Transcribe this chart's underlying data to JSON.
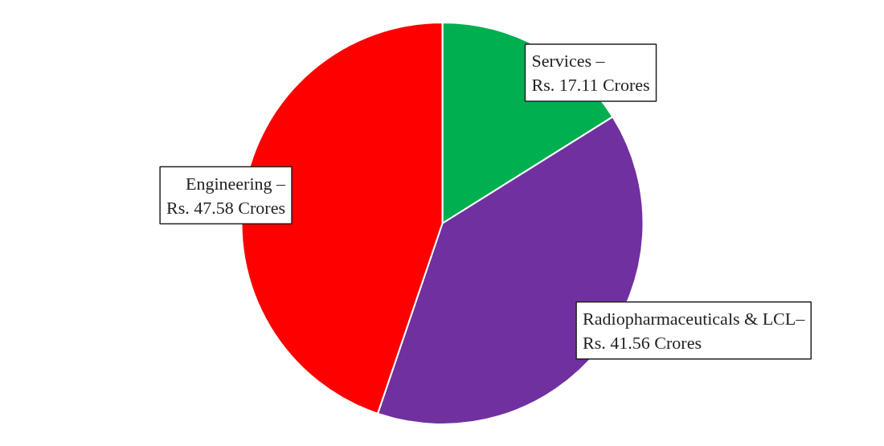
{
  "chart_data": {
    "type": "pie",
    "categories": [
      "Services –",
      "Radiopharmaceuticals & LCL–",
      "Engineering –"
    ],
    "values": [
      17.11,
      41.56,
      47.58
    ],
    "colors": [
      "#00b050",
      "#7030a0",
      "#ff0000"
    ],
    "value_labels": [
      "Rs. 17.11 Crores",
      "Rs. 41.56 Crores",
      "Rs. 47.58 Crores"
    ]
  }
}
